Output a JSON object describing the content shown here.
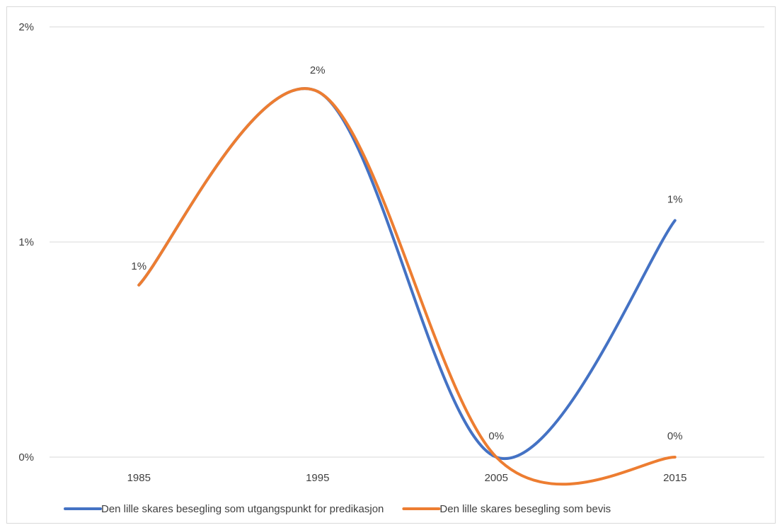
{
  "chart_data": {
    "type": "line",
    "categories": [
      "1985",
      "1995",
      "2005",
      "2015"
    ],
    "ylim": [
      0,
      0.02
    ],
    "y_ticks": [
      {
        "value": 0,
        "label": "0%"
      },
      {
        "value": 0.01,
        "label": "1%"
      },
      {
        "value": 0.02,
        "label": "2%"
      }
    ],
    "grid": true,
    "legend_position": "bottom",
    "smooth": true,
    "series": [
      {
        "name": "Den lille skares besegling som utgangspunkt for predikasjon",
        "color": "#4472C4",
        "values": [
          0.008,
          0.017,
          0.0,
          0.011
        ],
        "data_labels": [
          null,
          null,
          null,
          "1%"
        ]
      },
      {
        "name": "Den lille skares besegling som bevis",
        "color": "#ED7D31",
        "values": [
          0.008,
          0.017,
          0.0,
          0.0
        ],
        "data_labels": [
          "1%",
          "2%",
          "0%",
          "0%"
        ]
      }
    ]
  }
}
